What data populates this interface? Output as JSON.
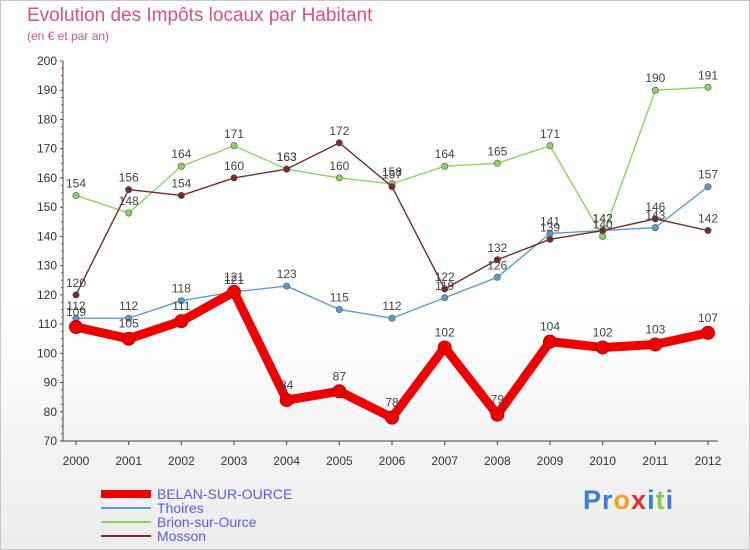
{
  "chart_data": {
    "type": "line",
    "title": "Evolution des Impôts locaux par Habitant",
    "subtitle": "(en € et par an)",
    "xlabel": "",
    "ylabel": "",
    "x": [
      "2000",
      "2001",
      "2002",
      "2003",
      "2004",
      "2005",
      "2006",
      "2007",
      "2008",
      "2009",
      "2010",
      "2011",
      "2012"
    ],
    "ylim": [
      70,
      200
    ],
    "yticks": [
      70,
      80,
      90,
      100,
      110,
      120,
      130,
      140,
      150,
      160,
      170,
      180,
      190,
      200
    ],
    "grid": false,
    "legend_position": "bottom-left",
    "series": [
      {
        "name": "BELAN-SUR-OURCE",
        "color": "#ee0000",
        "emphasis": true,
        "values": [
          109,
          105,
          111,
          121,
          84,
          87,
          78,
          102,
          79,
          104,
          102,
          103,
          107
        ]
      },
      {
        "name": "Thoires",
        "color": "#5b9bd5",
        "emphasis": false,
        "values": [
          112,
          112,
          118,
          121,
          123,
          115,
          112,
          119,
          126,
          141,
          142,
          143,
          157
        ]
      },
      {
        "name": "Brion-sur-Ource",
        "color": "#88d65c",
        "emphasis": false,
        "values": [
          154,
          148,
          164,
          171,
          163,
          160,
          158,
          164,
          165,
          171,
          140,
          190,
          191
        ]
      },
      {
        "name": "Mosson",
        "color": "#7a2a2a",
        "emphasis": false,
        "values": [
          120,
          156,
          154,
          160,
          163,
          172,
          157,
          122,
          132,
          139,
          142,
          146,
          142
        ]
      }
    ]
  },
  "branding": {
    "logo_letters": [
      "P",
      "r",
      "o",
      "x",
      "i",
      "t",
      "i"
    ],
    "logo_colors": [
      "#3a7fd5",
      "#3a7fd5",
      "#f0a020",
      "#e03030",
      "#3a7fd5",
      "#88c850",
      "#3a7fd5"
    ]
  }
}
